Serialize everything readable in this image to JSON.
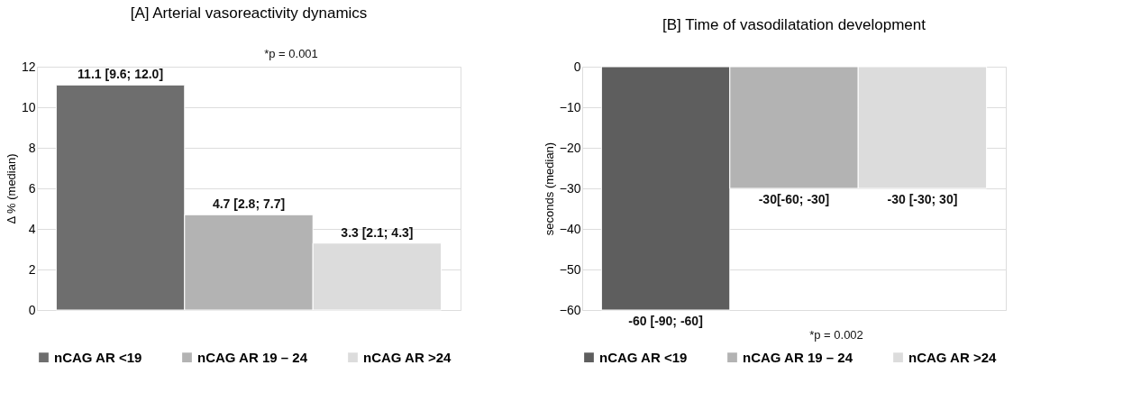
{
  "chart_data": [
    {
      "type": "bar",
      "title": "[A] Arterial vasoreactivity dynamics",
      "ylabel": "Δ % (median)",
      "categories": [
        null,
        null,
        null
      ],
      "series": [
        {
          "name": "nCAG AR <19",
          "color": "#6e6e6e",
          "values": [
            11.1,
            null,
            null
          ],
          "value_labels": [
            "11.1 [9.6; 12.0]",
            null,
            null
          ]
        },
        {
          "name": "nCAG AR 19 – 24",
          "color": "#b3b3b3",
          "values": [
            null,
            4.7,
            null
          ],
          "value_labels": [
            null,
            "4.7 [2.8; 7.7]",
            null
          ]
        },
        {
          "name": "nCAG AR >24",
          "color": "#dcdcdc",
          "values": [
            null,
            null,
            3.3
          ],
          "value_labels": [
            null,
            null,
            "3.3 [2.1; 4.3]"
          ]
        }
      ],
      "ylim": [
        0,
        12
      ],
      "yticks": [
        0,
        2,
        4,
        6,
        8,
        10,
        12
      ],
      "grid": "y",
      "legend": "bottom",
      "tick_labels": "y",
      "annotations": [
        "*p = 0.001"
      ]
    },
    {
      "type": "bar",
      "title": "[B] Time of vasodilatation development",
      "ylabel": "seconds (median)",
      "categories": [
        null,
        null,
        null
      ],
      "series": [
        {
          "name": "nCAG AR <19",
          "color": "#5e5e5e",
          "values": [
            -60,
            null,
            null
          ],
          "value_labels": [
            "-60 [-90; -60]",
            null,
            null
          ]
        },
        {
          "name": "nCAG AR 19 – 24",
          "color": "#b3b3b3",
          "values": [
            null,
            -30,
            null
          ],
          "value_labels": [
            null,
            "-30[-60; -30]",
            null
          ]
        },
        {
          "name": "nCAG AR >24",
          "color": "#dcdcdc",
          "values": [
            null,
            null,
            -30
          ],
          "value_labels": [
            null,
            null,
            "-30 [-30; 30]"
          ]
        }
      ],
      "ylim": [
        -60,
        0
      ],
      "yticks": [
        0,
        -10,
        -20,
        -30,
        -40,
        -50,
        -60
      ],
      "grid": "y",
      "legend": "bottom",
      "tick_labels": "y",
      "annotations": [
        "*p = 0.002"
      ]
    }
  ]
}
